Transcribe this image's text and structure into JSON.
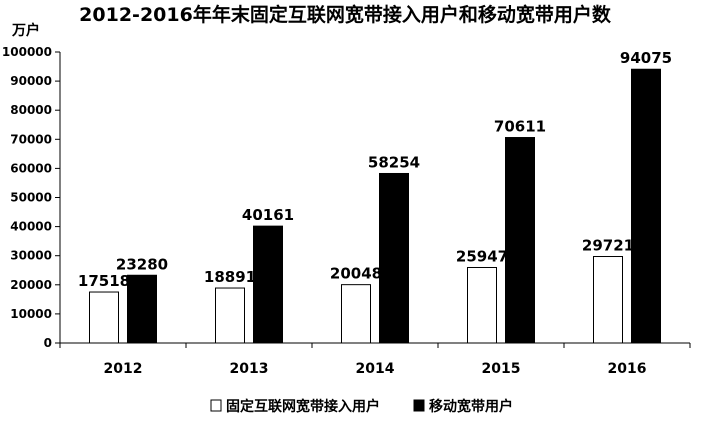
{
  "chart_data": {
    "type": "bar",
    "title": "2012-2016年年末固定互联网宽带接入用户和移动宽带用户数",
    "unit_label": "万户",
    "categories": [
      "2012",
      "2013",
      "2014",
      "2015",
      "2016"
    ],
    "series": [
      {
        "name": "固定互联网宽带接入用户",
        "values": [
          17518,
          18891,
          20048,
          25947,
          29721
        ],
        "fill": "#ffffff",
        "stroke": "#000000"
      },
      {
        "name": "移动宽带用户",
        "values": [
          23280,
          40161,
          58254,
          70611,
          94075
        ],
        "fill": "#000000",
        "stroke": "#000000"
      }
    ],
    "ylim": [
      0,
      100000
    ],
    "y_ticks": [
      0,
      10000,
      20000,
      30000,
      40000,
      50000,
      60000,
      70000,
      80000,
      90000,
      100000
    ],
    "grid": false,
    "legend_position": "bottom"
  }
}
